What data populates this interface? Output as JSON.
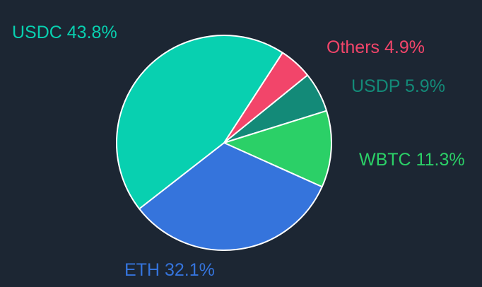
{
  "chart_data": {
    "type": "pie",
    "slices": [
      {
        "label": "Others",
        "value": 4.9,
        "text": "Others 4.9%",
        "color": "#f2456a"
      },
      {
        "label": "USDP",
        "value": 5.9,
        "text": "USDP 5.9%",
        "color": "#138a78"
      },
      {
        "label": "WBTC",
        "value": 11.3,
        "text": "WBTC 11.3%",
        "color": "#2bd067"
      },
      {
        "label": "ETH",
        "value": 32.1,
        "text": "ETH 32.1%",
        "color": "#3574dc"
      },
      {
        "label": "USDC",
        "value": 43.8,
        "text": "USDC 43.8%",
        "color": "#08d0b0"
      }
    ],
    "background": "#1c2633",
    "slice_border_color": "#ffffff"
  }
}
